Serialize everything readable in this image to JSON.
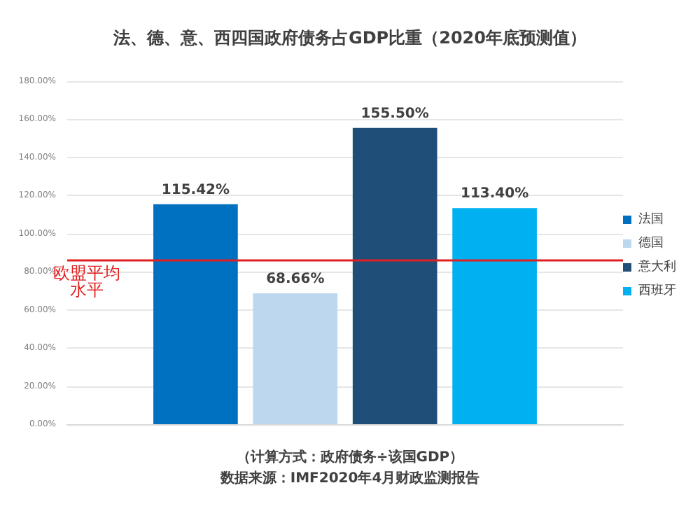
{
  "chart_data": {
    "type": "bar",
    "title": "法、德、意、西四国政府债务占GDP比重（2020年底预测值）",
    "categories": [
      null
    ],
    "series": [
      {
        "name": "法国",
        "color": "#0070c0",
        "values": [
          115.42
        ],
        "value_labels": [
          "115.42%"
        ]
      },
      {
        "name": "德国",
        "color": "#bdd7ee",
        "values": [
          68.66
        ],
        "value_labels": [
          "68.66%"
        ]
      },
      {
        "name": "意大利",
        "color": "#1f4e79",
        "values": [
          155.5
        ],
        "value_labels": [
          "155.50%"
        ]
      },
      {
        "name": "西班牙",
        "color": "#00b0f0",
        "values": [
          113.4
        ],
        "value_labels": [
          "113.40%"
        ]
      }
    ],
    "ylim": [
      0,
      180
    ],
    "yticks": [
      {
        "value": 0,
        "label": "0.00%"
      },
      {
        "value": 20,
        "label": "20.00%"
      },
      {
        "value": 40,
        "label": "40.00%"
      },
      {
        "value": 60,
        "label": "60.00%"
      },
      {
        "value": 80,
        "label": "80.00%"
      },
      {
        "value": 100,
        "label": "100.00%"
      },
      {
        "value": 120,
        "label": "120.00%"
      },
      {
        "value": 140,
        "label": "140.00%"
      },
      {
        "value": 160,
        "label": "160.00%"
      },
      {
        "value": 180,
        "label": "180.00%"
      }
    ],
    "ref_lines": [
      {
        "axis": "y",
        "value": 86,
        "label": "欧盟平均水平",
        "color": "#e02020"
      }
    ],
    "grid": "y",
    "legend": "right",
    "annotations": [
      "（计算方式：政府债务÷该国GDP）",
      "数据来源：IMF2020年4月财政监测报告"
    ]
  }
}
